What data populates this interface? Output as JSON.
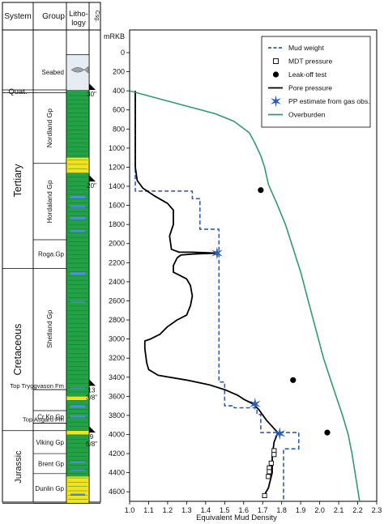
{
  "columns": {
    "system": "System",
    "group": "Group",
    "litho": [
      "Litho-",
      "logy"
    ],
    "csg": "Csg."
  },
  "systems": [
    {
      "name": "Quat.",
      "top": 390,
      "base": 420
    },
    {
      "name": "Tertiary",
      "top": 420,
      "base": 2260
    },
    {
      "name": "Cretaceous",
      "top": 2260,
      "base": 3960
    },
    {
      "name": "Jurassic",
      "top": 3960,
      "base": 4720
    }
  ],
  "groups": [
    {
      "name": "Seabed",
      "top": 20,
      "base": 390,
      "orient": "h"
    },
    {
      "name": "Nordland Gp",
      "top": 420,
      "base": 1160,
      "orient": "v"
    },
    {
      "name": "Hordaland Gp",
      "top": 1160,
      "base": 1960,
      "orient": "v"
    },
    {
      "name": "Roga.Gp",
      "top": 1960,
      "base": 2260,
      "orient": "h"
    },
    {
      "name": "Shetland Gp",
      "top": 2260,
      "base": 3530,
      "orient": "v"
    },
    {
      "name": "Cr.Kn.Gp",
      "top": 3750,
      "base": 3880,
      "orient": "h"
    },
    {
      "name": "Viking Gp",
      "top": 3960,
      "base": 4200,
      "orient": "h"
    },
    {
      "name": "Brent Gp",
      "top": 4200,
      "base": 4410,
      "orient": "h"
    },
    {
      "name": "Dunlin Gp",
      "top": 4410,
      "base": 4720,
      "orient": "h"
    }
  ],
  "markers": [
    {
      "name": "Top Tryggvason Fm",
      "depth": 3530
    },
    {
      "name": "Top Asgard Fm",
      "depth": 3880
    }
  ],
  "casing": [
    {
      "label": [
        "30\""
      ],
      "depth": 390
    },
    {
      "label": [
        "20\""
      ],
      "depth": 1350
    },
    {
      "label": [
        "13",
        "3/8\""
      ],
      "depth": 3490
    },
    {
      "label": [
        "9",
        "5/8\""
      ],
      "depth": 3980
    }
  ],
  "lithology_colors": {
    "water": "#e6ecf1",
    "shale": "#22a245",
    "sand": "#f2e31c",
    "carbonate": "#4d8fd6"
  },
  "chart_data": {
    "type": "line",
    "ylabel": "mRKB",
    "xlabel": "Equivalent Mud Density",
    "xlim": [
      1.0,
      2.3
    ],
    "ylim": [
      0,
      4700
    ],
    "y_inverted": true,
    "xticks": [
      "1.0",
      "1.1",
      "1.2",
      "1.3",
      "1.4",
      "1.5",
      "1.6",
      "1.7",
      "1.8",
      "1.9",
      "2.0",
      "2.1",
      "2.2",
      "2.3"
    ],
    "yticks": [
      "0",
      "200",
      "400",
      "600",
      "800",
      "1000",
      "1200",
      "1400",
      "1600",
      "1800",
      "2000",
      "2200",
      "2400",
      "2600",
      "2800",
      "3000",
      "3200",
      "3400",
      "3600",
      "3800",
      "4000",
      "4200",
      "4400",
      "4600"
    ],
    "grid": false,
    "legend_position": "top-right",
    "legend": [
      "Mud weight",
      "MDT pressure",
      "Leak-off test",
      "Pore pressure",
      "PP estimate from gas obs.",
      "Overburden"
    ],
    "series": [
      {
        "name": "Mud weight",
        "style": "dashed",
        "color": "#2b5fb4",
        "points": [
          [
            1.03,
            400
          ],
          [
            1.03,
            1450
          ],
          [
            1.33,
            1450
          ],
          [
            1.33,
            1530
          ],
          [
            1.37,
            1530
          ],
          [
            1.37,
            1850
          ],
          [
            1.47,
            1850
          ],
          [
            1.47,
            3450
          ],
          [
            1.5,
            3450
          ],
          [
            1.5,
            3700
          ],
          [
            1.55,
            3700
          ],
          [
            1.55,
            3720
          ],
          [
            1.67,
            3720
          ],
          [
            1.67,
            3790
          ],
          [
            1.69,
            3790
          ],
          [
            1.69,
            3980
          ],
          [
            1.89,
            3980
          ],
          [
            1.89,
            4150
          ],
          [
            1.81,
            4150
          ],
          [
            1.81,
            4700
          ]
        ]
      },
      {
        "name": "Pore pressure",
        "style": "solid",
        "color": "#000000",
        "points": [
          [
            1.03,
            400
          ],
          [
            1.03,
            1200
          ],
          [
            1.04,
            1340
          ],
          [
            1.07,
            1420
          ],
          [
            1.13,
            1500
          ],
          [
            1.2,
            1580
          ],
          [
            1.23,
            1650
          ],
          [
            1.23,
            1800
          ],
          [
            1.21,
            1920
          ],
          [
            1.22,
            2060
          ],
          [
            1.26,
            2090
          ],
          [
            1.33,
            2090
          ],
          [
            1.46,
            2100
          ],
          [
            1.33,
            2110
          ],
          [
            1.27,
            2120
          ],
          [
            1.25,
            2150
          ],
          [
            1.23,
            2230
          ],
          [
            1.23,
            2300
          ],
          [
            1.26,
            2330
          ],
          [
            1.3,
            2370
          ],
          [
            1.32,
            2440
          ],
          [
            1.33,
            2550
          ],
          [
            1.32,
            2650
          ],
          [
            1.3,
            2750
          ],
          [
            1.25,
            2800
          ],
          [
            1.2,
            2870
          ],
          [
            1.16,
            2950
          ],
          [
            1.11,
            3000
          ],
          [
            1.08,
            3020
          ],
          [
            1.08,
            3100
          ],
          [
            1.09,
            3250
          ],
          [
            1.1,
            3320
          ],
          [
            1.15,
            3380
          ],
          [
            1.3,
            3430
          ],
          [
            1.42,
            3480
          ],
          [
            1.5,
            3530
          ],
          [
            1.57,
            3590
          ],
          [
            1.6,
            3630
          ],
          [
            1.65,
            3680
          ],
          [
            1.68,
            3740
          ],
          [
            1.72,
            3850
          ],
          [
            1.77,
            3960
          ],
          [
            1.78,
            3980
          ],
          [
            1.76,
            4080
          ],
          [
            1.75,
            4230
          ],
          [
            1.75,
            4400
          ],
          [
            1.73,
            4560
          ],
          [
            1.71,
            4630
          ],
          [
            1.7,
            4660
          ]
        ]
      },
      {
        "name": "Overburden",
        "style": "solid",
        "color": "#2e9c6e",
        "points": [
          [
            1.0,
            400
          ],
          [
            1.15,
            480
          ],
          [
            1.3,
            560
          ],
          [
            1.45,
            640
          ],
          [
            1.55,
            720
          ],
          [
            1.63,
            840
          ],
          [
            1.66,
            950
          ],
          [
            1.69,
            1080
          ],
          [
            1.71,
            1200
          ],
          [
            1.73,
            1380
          ],
          [
            1.77,
            1560
          ],
          [
            1.82,
            1800
          ],
          [
            1.86,
            2050
          ],
          [
            1.9,
            2300
          ],
          [
            1.94,
            2600
          ],
          [
            1.98,
            2900
          ],
          [
            2.02,
            3200
          ],
          [
            2.07,
            3500
          ],
          [
            2.12,
            3800
          ],
          [
            2.15,
            4000
          ],
          [
            2.17,
            4200
          ],
          [
            2.19,
            4450
          ],
          [
            2.21,
            4700
          ]
        ]
      },
      {
        "name": "MDT pressure",
        "marker": "square",
        "points": [
          [
            1.76,
            4170
          ],
          [
            1.76,
            4210
          ],
          [
            1.745,
            4300
          ],
          [
            1.735,
            4350
          ],
          [
            1.735,
            4390
          ],
          [
            1.73,
            4440
          ],
          [
            1.71,
            4640
          ]
        ]
      },
      {
        "name": "Leak-off test",
        "marker": "circle",
        "points": [
          [
            1.69,
            1440
          ],
          [
            1.86,
            3430
          ],
          [
            2.04,
            3980
          ]
        ]
      },
      {
        "name": "PP estimate from gas obs.",
        "marker": "star",
        "color": "#2b5fb4",
        "points": [
          [
            1.46,
            2100
          ],
          [
            1.66,
            3680
          ],
          [
            1.79,
            3990
          ]
        ]
      }
    ]
  }
}
